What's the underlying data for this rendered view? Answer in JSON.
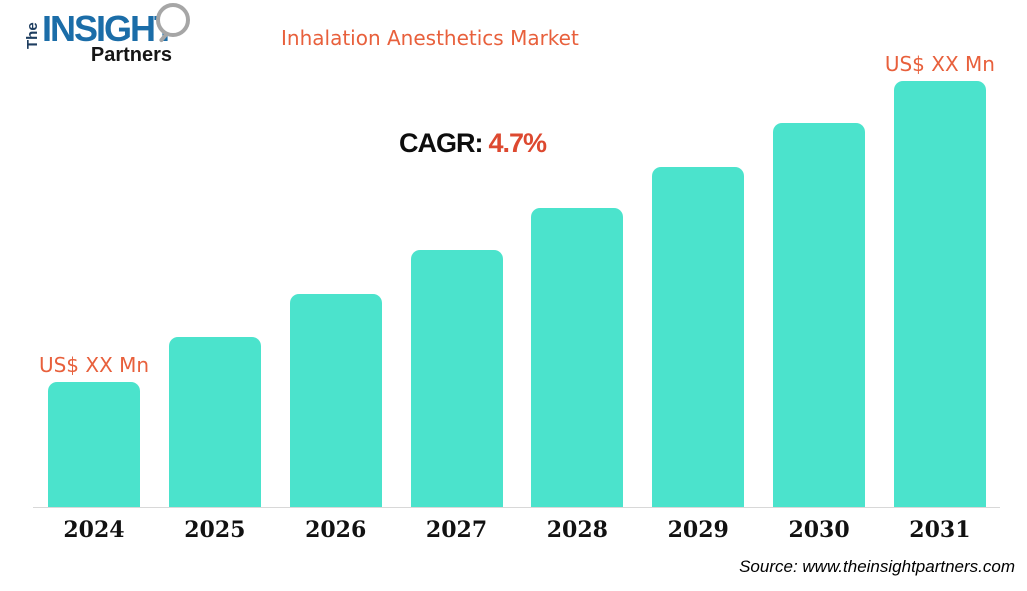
{
  "logo": {
    "the": "The",
    "insight": "INSIGHT",
    "partners": "Partners"
  },
  "title": "Inhalation Anesthetics Market",
  "cagr": {
    "label": "CAGR:",
    "value": "4.7%"
  },
  "source": "Source: www.theinsightpartners.com",
  "colors": {
    "bar": "#4BE3CC",
    "accent_orange": "#E8603C",
    "cagr_orange": "#DD4930",
    "axis_line": "#D8D8D8",
    "insight_blue": "#1B6DA8",
    "logo_navy": "#1F3E60"
  },
  "chart_data": {
    "type": "bar",
    "title": "Inhalation Anesthetics Market",
    "cagr_pct": 4.7,
    "categories": [
      "2024",
      "2025",
      "2026",
      "2027",
      "2028",
      "2029",
      "2030",
      "2031"
    ],
    "values_shown_as": "US$ XX Mn (numeric values masked)",
    "relative_heights_pct": [
      29.5,
      40.0,
      50.1,
      60.4,
      70.3,
      79.9,
      90.2,
      100
    ],
    "value_labels": {
      "first": "US$ XX Mn",
      "last": "US$ XX Mn"
    },
    "xlabel": "",
    "ylabel": "",
    "grid": false,
    "legend": false,
    "baseline_axis": true
  }
}
